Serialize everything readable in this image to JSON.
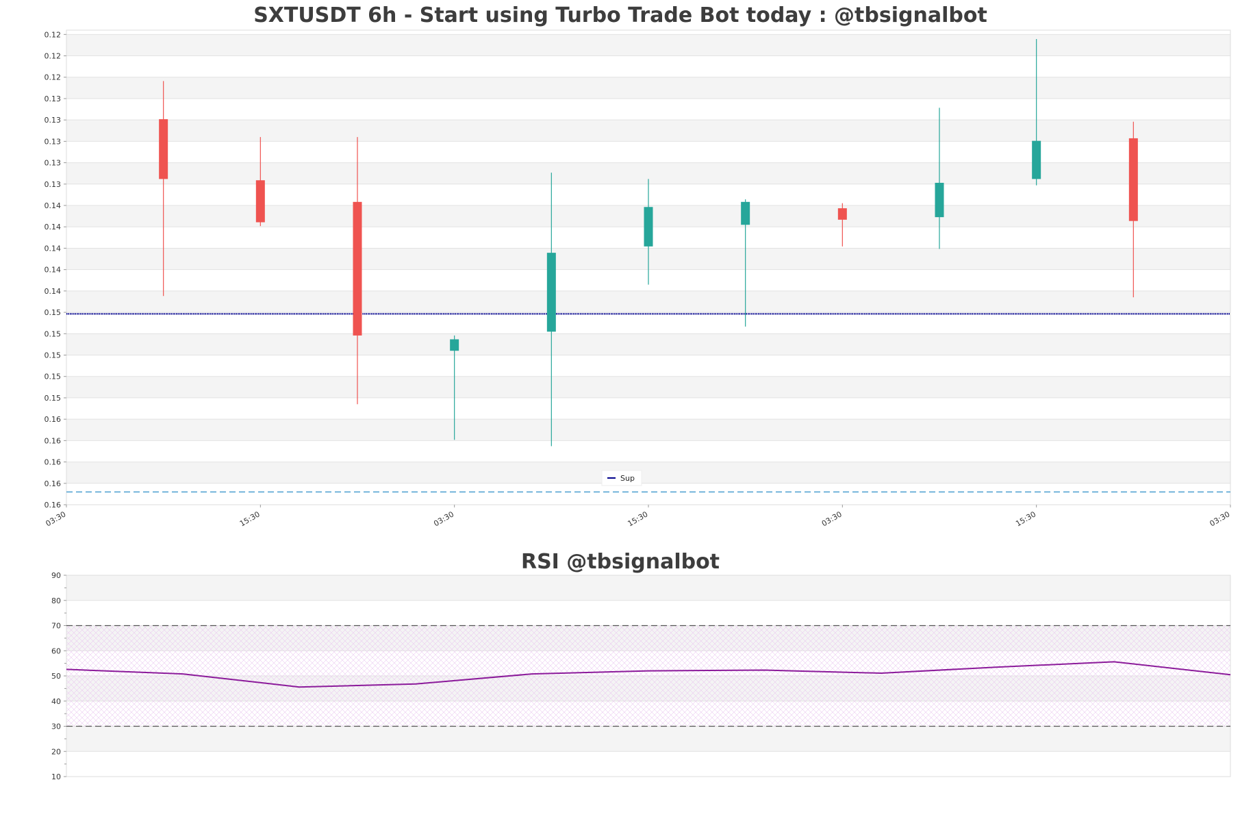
{
  "chart_data": [
    {
      "type": "candlestick",
      "title": "SXTUSDT 6h - Start using Turbo Trade Bot today : @tbsignalbot",
      "ytick_labels": [
        "0.16",
        "0.16",
        "0.16",
        "0.16",
        "0.16",
        "0.15",
        "0.15",
        "0.15",
        "0.15",
        "0.15",
        "0.14",
        "0.14",
        "0.14",
        "0.14",
        "0.14",
        "0.13",
        "0.13",
        "0.13",
        "0.13",
        "0.13",
        "0.12",
        "0.12",
        "0.12"
      ],
      "ylim": [
        0.1219,
        0.1592
      ],
      "xtick_labels": [
        "03:30",
        "15:30",
        "03:30",
        "15:30",
        "03:30",
        "15:30",
        "03:30"
      ],
      "candles": [
        {
          "open": 0.1522,
          "high": 0.1552,
          "low": 0.1383,
          "close": 0.1475
        },
        {
          "open": 0.1474,
          "high": 0.1508,
          "low": 0.1438,
          "close": 0.1441
        },
        {
          "open": 0.1457,
          "high": 0.1508,
          "low": 0.1298,
          "close": 0.1352
        },
        {
          "open": 0.134,
          "high": 0.1352,
          "low": 0.127,
          "close": 0.1349
        },
        {
          "open": 0.1355,
          "high": 0.148,
          "low": 0.1265,
          "close": 0.1417
        },
        {
          "open": 0.1422,
          "high": 0.1475,
          "low": 0.1392,
          "close": 0.1453
        },
        {
          "open": 0.1439,
          "high": 0.1459,
          "low": 0.1359,
          "close": 0.1457
        },
        {
          "open": 0.1452,
          "high": 0.1456,
          "low": 0.1422,
          "close": 0.1443
        },
        {
          "open": 0.1445,
          "high": 0.1531,
          "low": 0.142,
          "close": 0.1472
        },
        {
          "open": 0.1475,
          "high": 0.1585,
          "low": 0.147,
          "close": 0.1505
        },
        {
          "open": 0.1507,
          "high": 0.152,
          "low": 0.1382,
          "close": 0.1442
        }
      ],
      "support_line": {
        "name": "Sup",
        "value": 0.1369,
        "color": "#00008b"
      },
      "dashed_line": {
        "value": 0.1229,
        "color": "#4a9fd0"
      },
      "up_color": "#26a69a",
      "down_color": "#ef5350",
      "legend_position": "bottom-center"
    },
    {
      "type": "line",
      "title": "RSI @tbsignalbot",
      "ytick_labels": [
        "90",
        "80",
        "70",
        "60",
        "50",
        "40",
        "30",
        "20",
        "10"
      ],
      "ylim": [
        10,
        90
      ],
      "values": [
        52.6,
        50.8,
        45.6,
        46.8,
        50.8,
        52.0,
        52.3,
        51.1,
        53.5,
        55.6,
        50.5
      ],
      "overbought": 70,
      "oversold": 30,
      "line_color": "#8b1a9a"
    }
  ]
}
